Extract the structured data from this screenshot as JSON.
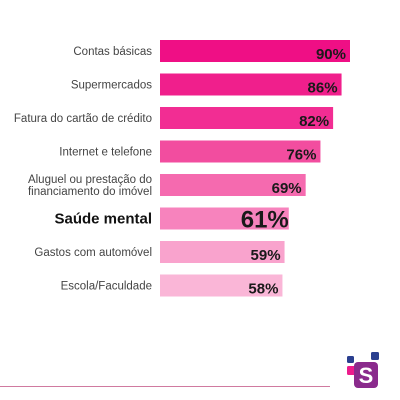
{
  "chart_data": {
    "type": "bar",
    "orientation": "horizontal",
    "categories": [
      "Contas básicas",
      "Supermercados",
      "Fatura do cartão de crédito",
      "Internet e telefone",
      "Aluguel ou prestação do financiamento do imóvel",
      "Saúde mental",
      "Gastos com automóvel",
      "Escola/Faculdade"
    ],
    "values": [
      90,
      86,
      82,
      76,
      69,
      61,
      59,
      58
    ],
    "value_labels": [
      "90%",
      "86%",
      "82%",
      "76%",
      "69%",
      "61%",
      "59%",
      "58%"
    ],
    "highlighted_category": "Saúde mental",
    "unit": "%",
    "bar_colors": [
      "#ef0f85",
      "#f01f8c",
      "#f22d93",
      "#f24d9f",
      "#f56aaf",
      "#f783bd",
      "#f9a3cd",
      "#fab6d7"
    ]
  },
  "logo": {
    "letter": "S",
    "colors": [
      "#ec1c8c",
      "#2a3f8f",
      "#8a2a8c"
    ]
  }
}
